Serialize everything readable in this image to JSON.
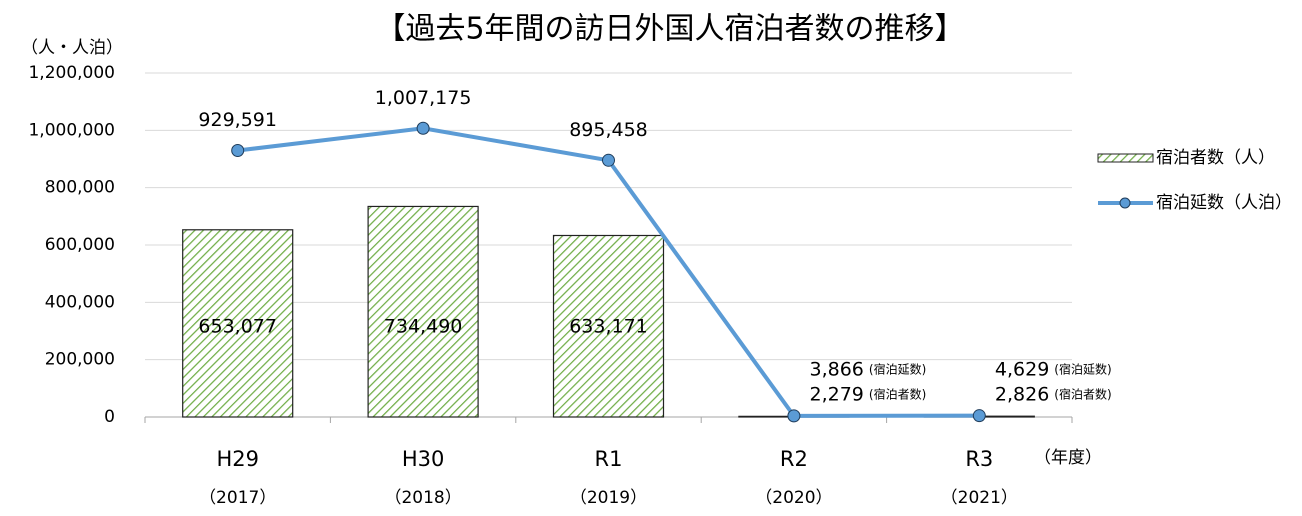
{
  "chart_data": {
    "type": "bar_line",
    "title": "【過去5年間の訪日外国人宿泊者数の推移】",
    "y_axis_label": "（人・人泊）",
    "x_axis_label": "（年度）",
    "categories": [
      "H29",
      "H30",
      "R1",
      "R2",
      "R3"
    ],
    "category_sublabels": [
      "（2017）",
      "（2018）",
      "（2019）",
      "（2020）",
      "（2021）"
    ],
    "ylim": [
      0,
      1200000
    ],
    "yticks": [
      {
        "value": 0,
        "label": "0"
      },
      {
        "value": 200000,
        "label": "200,000"
      },
      {
        "value": 400000,
        "label": "400,000"
      },
      {
        "value": 600000,
        "label": "600,000"
      },
      {
        "value": 800000,
        "label": "800,000"
      },
      {
        "value": 1000000,
        "label": "1,000,000"
      },
      {
        "value": 1200000,
        "label": "1,200,000"
      }
    ],
    "grid": true,
    "legend": "right",
    "series": [
      {
        "name": "宿泊者数（人）",
        "type": "bar",
        "color": "#70ad47",
        "tag": "(宿泊者数)",
        "values": [
          653077,
          734490,
          633171,
          2279,
          2826
        ],
        "value_labels": [
          "653,077",
          "734,490",
          "633,171",
          "2,279",
          "2,826"
        ]
      },
      {
        "name": "宿泊延数（人泊）",
        "type": "line",
        "color": "#5b9bd5",
        "tag": "(宿泊延数)",
        "values": [
          929591,
          1007175,
          895458,
          3866,
          4629
        ],
        "value_labels": [
          "929,591",
          "1,007,175",
          "895,458",
          "3,866",
          "4,629"
        ]
      }
    ]
  }
}
